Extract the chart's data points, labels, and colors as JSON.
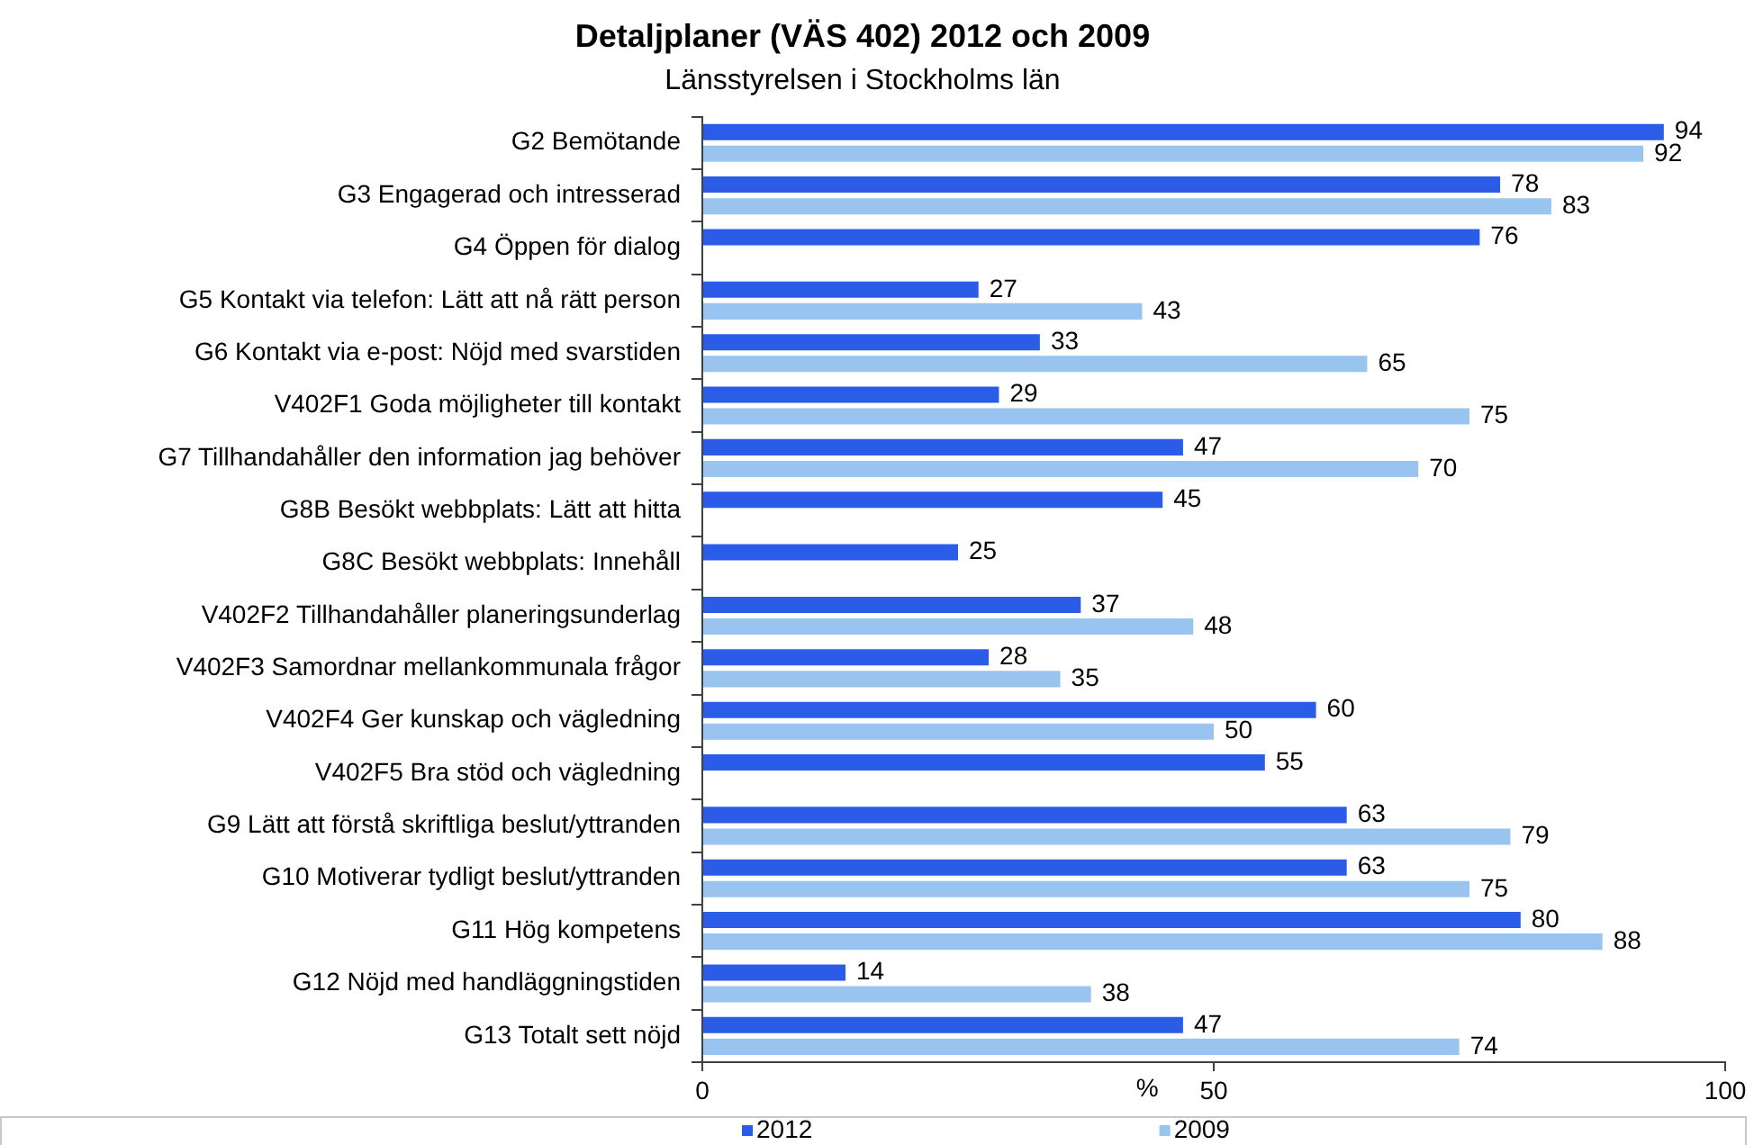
{
  "chart_data": {
    "type": "bar",
    "orientation": "horizontal",
    "title": "Detaljplaner (VÄS 402) 2012 och 2009",
    "subtitle": "Länsstyrelsen i Stockholms län",
    "xlabel": "%",
    "categories": [
      "G2 Bemötande",
      "G3 Engagerad och intresserad",
      "G4 Öppen för dialog",
      "G5 Kontakt via telefon: Lätt att nå rätt person",
      "G6 Kontakt via e-post: Nöjd med svarstiden",
      "V402F1 Goda möjligheter till kontakt",
      "G7 Tillhandahåller den information jag behöver",
      "G8B Besökt webbplats: Lätt att hitta",
      "G8C Besökt webbplats: Innehåll",
      "V402F2 Tillhandahåller planeringsunderlag",
      "V402F3 Samordnar mellankommunala frågor",
      "V402F4 Ger kunskap och vägledning",
      "V402F5 Bra stöd och vägledning",
      "G9 Lätt att förstå skriftliga beslut/yttranden",
      "G10 Motiverar tydligt beslut/yttranden",
      "G11 Hög kompetens",
      "G12 Nöjd med handläggningstiden",
      "G13 Totalt sett nöjd"
    ],
    "series": [
      {
        "name": "2012",
        "color": "#2b5ce8",
        "values": [
          94,
          78,
          76,
          27,
          33,
          29,
          47,
          45,
          25,
          37,
          28,
          60,
          55,
          63,
          63,
          80,
          14,
          47
        ]
      },
      {
        "name": "2009",
        "color": "#9ac4f0",
        "values": [
          92,
          83,
          null,
          43,
          65,
          75,
          70,
          null,
          null,
          48,
          35,
          50,
          null,
          79,
          75,
          88,
          38,
          74
        ]
      }
    ],
    "xlim": [
      0,
      100
    ],
    "xticks": [
      0,
      50,
      100
    ],
    "data_labels": true,
    "grid": false,
    "legend": "bottom"
  }
}
